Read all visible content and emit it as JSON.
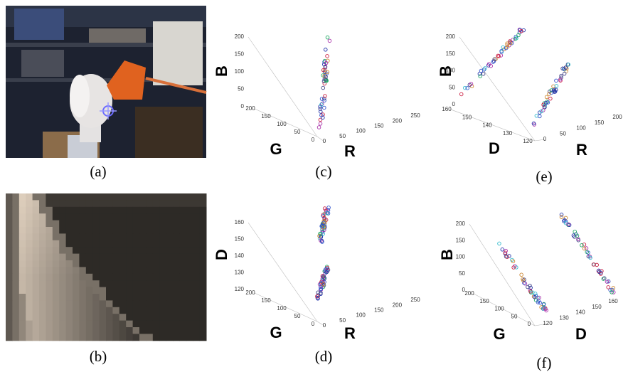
{
  "panels": [
    {
      "label": "(a)"
    },
    {
      "label": "(b)"
    },
    {
      "label": "(c)",
      "axes": [
        {
          "name": "B",
          "ticks": [
            200,
            150,
            100,
            50,
            0
          ]
        },
        {
          "name": "G",
          "ticks": [
            200,
            150,
            100,
            50,
            0
          ]
        },
        {
          "name": "R",
          "ticks": [
            0,
            50,
            100,
            150,
            200,
            250
          ]
        }
      ]
    },
    {
      "label": "(d)",
      "axes": [
        {
          "name": "D",
          "ticks": [
            160,
            150,
            140,
            130,
            120
          ]
        },
        {
          "name": "G",
          "ticks": [
            200,
            150,
            100,
            50,
            0
          ]
        },
        {
          "name": "R",
          "ticks": [
            0,
            50,
            100,
            150,
            200,
            250
          ]
        }
      ]
    },
    {
      "label": "(e)",
      "axes": [
        {
          "name": "B",
          "ticks": [
            200,
            150,
            100,
            50,
            0
          ]
        },
        {
          "name": "D",
          "ticks": [
            160,
            150,
            140,
            130,
            120
          ]
        },
        {
          "name": "R",
          "ticks": [
            0,
            50,
            100,
            150,
            200
          ]
        }
      ]
    },
    {
      "label": "(f)",
      "axes": [
        {
          "name": "B",
          "ticks": [
            200,
            150,
            100,
            50,
            0
          ]
        },
        {
          "name": "G",
          "ticks": [
            200,
            150,
            100,
            50,
            0
          ]
        },
        {
          "name": "D",
          "ticks": [
            120,
            130,
            140,
            150,
            160
          ]
        }
      ]
    }
  ]
}
